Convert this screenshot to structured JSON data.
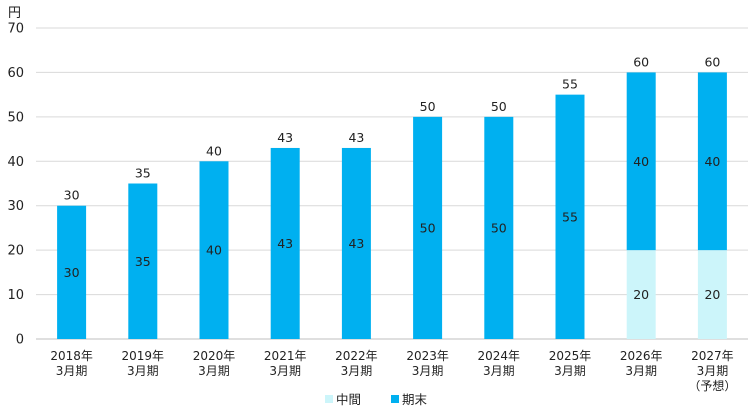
{
  "chart_data": {
    "type": "bar",
    "stacked": true,
    "unit": "円",
    "ylim": [
      0,
      70
    ],
    "yticks": [
      0,
      10,
      20,
      30,
      40,
      50,
      60,
      70
    ],
    "grid": true,
    "legend_position": "bottom",
    "categories": [
      [
        "2018年",
        "3月期"
      ],
      [
        "2019年",
        "3月期"
      ],
      [
        "2020年",
        "3月期"
      ],
      [
        "2021年",
        "3月期"
      ],
      [
        "2022年",
        "3月期"
      ],
      [
        "2023年",
        "3月期"
      ],
      [
        "2024年",
        "3月期"
      ],
      [
        "2025年",
        "3月期"
      ],
      [
        "2026年",
        "3月期"
      ],
      [
        "2027年",
        "3月期",
        "（予想）"
      ]
    ],
    "series": [
      {
        "name": "中間",
        "color": "#ccf5fa",
        "values": [
          0,
          0,
          0,
          0,
          0,
          0,
          0,
          0,
          20,
          20
        ]
      },
      {
        "name": "期末",
        "color": "#00b0f0",
        "values": [
          30,
          35,
          40,
          43,
          43,
          50,
          50,
          55,
          40,
          40
        ]
      }
    ],
    "totals": [
      30,
      35,
      40,
      43,
      43,
      50,
      50,
      55,
      60,
      60
    ]
  }
}
